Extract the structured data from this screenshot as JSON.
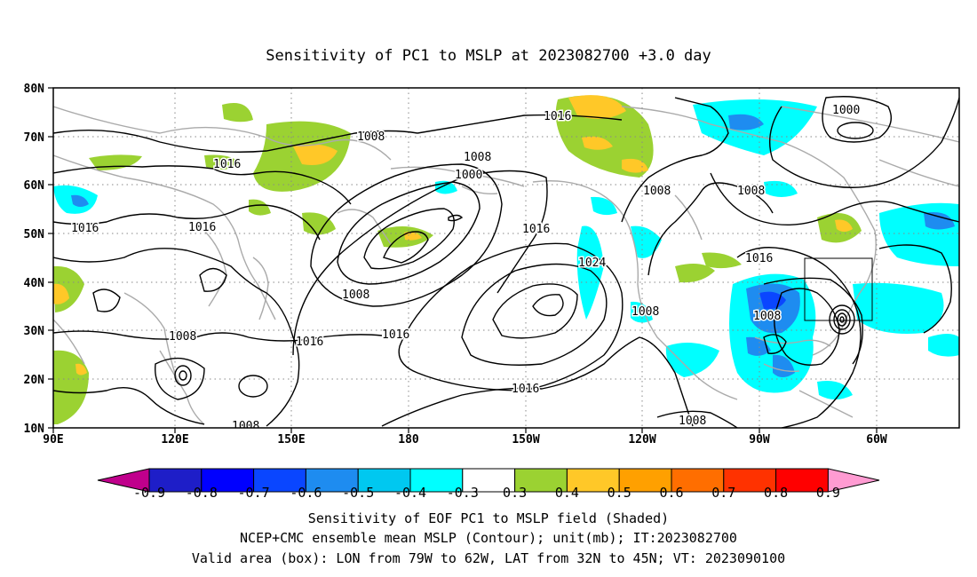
{
  "title": "Sensitivity of PC1 to MSLP at 2023082700 +3.0 day",
  "lat_labels": [
    "80N",
    "70N",
    "60N",
    "50N",
    "40N",
    "30N",
    "20N",
    "10N"
  ],
  "lon_labels": [
    "90E",
    "120E",
    "150E",
    "180",
    "150W",
    "120W",
    "90W",
    "60W"
  ],
  "contour_labels": [
    {
      "id": "c1008-a",
      "text": "1008"
    },
    {
      "id": "c1016-a",
      "text": "1016"
    },
    {
      "id": "c1016-b",
      "text": "1016"
    },
    {
      "id": "c1016-c",
      "text": "1016"
    },
    {
      "id": "c1008-b",
      "text": "1008"
    },
    {
      "id": "c1000-a",
      "text": "1000"
    },
    {
      "id": "c1016-d",
      "text": "1016"
    },
    {
      "id": "c1008-c",
      "text": "1008"
    },
    {
      "id": "c1008-d",
      "text": "1008"
    },
    {
      "id": "c1000-b",
      "text": "1000"
    },
    {
      "id": "c1016-e",
      "text": "1016"
    },
    {
      "id": "c1024-a",
      "text": "1024"
    },
    {
      "id": "c1016-f",
      "text": "1016"
    },
    {
      "id": "c1008-e",
      "text": "1008"
    },
    {
      "id": "c1008-f",
      "text": "1008"
    },
    {
      "id": "c1008-g",
      "text": "1008"
    },
    {
      "id": "c1016-g",
      "text": "1016"
    },
    {
      "id": "c1016-h",
      "text": "1016"
    },
    {
      "id": "c1008-h",
      "text": "1008"
    },
    {
      "id": "c1008-i",
      "text": "1008"
    },
    {
      "id": "c1008-j",
      "text": "1008"
    },
    {
      "id": "c1016-i",
      "text": "1016"
    }
  ],
  "colorbar": {
    "labels": [
      "-0.9",
      "-0.8",
      "-0.7",
      "-0.6",
      "-0.5",
      "-0.4",
      "-0.3",
      "0.3",
      "0.4",
      "0.5",
      "0.6",
      "0.7",
      "0.8",
      "0.9"
    ],
    "colors": [
      "#c0008c",
      "#1e1ec8",
      "#0000ff",
      "#0a46ff",
      "#1e8cf0",
      "#00c8f0",
      "#00ffff",
      "#ffffff",
      "#9bd232",
      "#ffc828",
      "#ffa000",
      "#ff6e00",
      "#ff3200",
      "#ff0000",
      "#ff9bd2"
    ]
  },
  "shading_colors": {
    "light_blue": "#00ffff",
    "mid_blue": "#00c8f0",
    "blue": "#1e8cf0",
    "dark_blue": "#0a46ff",
    "green": "#9bd232",
    "yellow": "#ffc828",
    "orange": "#ffa000"
  },
  "coastline_color": "#aaaaaa",
  "valid_box": {
    "lon_min": "79W",
    "lon_max": "62W",
    "lat_min": "32N",
    "lat_max": "45N"
  },
  "caption": {
    "line1": "Sensitivity of EOF PC1 to MSLP field (Shaded)",
    "line2": "NCEP+CMC ensemble mean MSLP (Contour); unit(mb); IT:2023082700",
    "line3": "Valid area (box): LON from 79W to 62W, LAT from 32N to 45N; VT: 2023090100"
  }
}
